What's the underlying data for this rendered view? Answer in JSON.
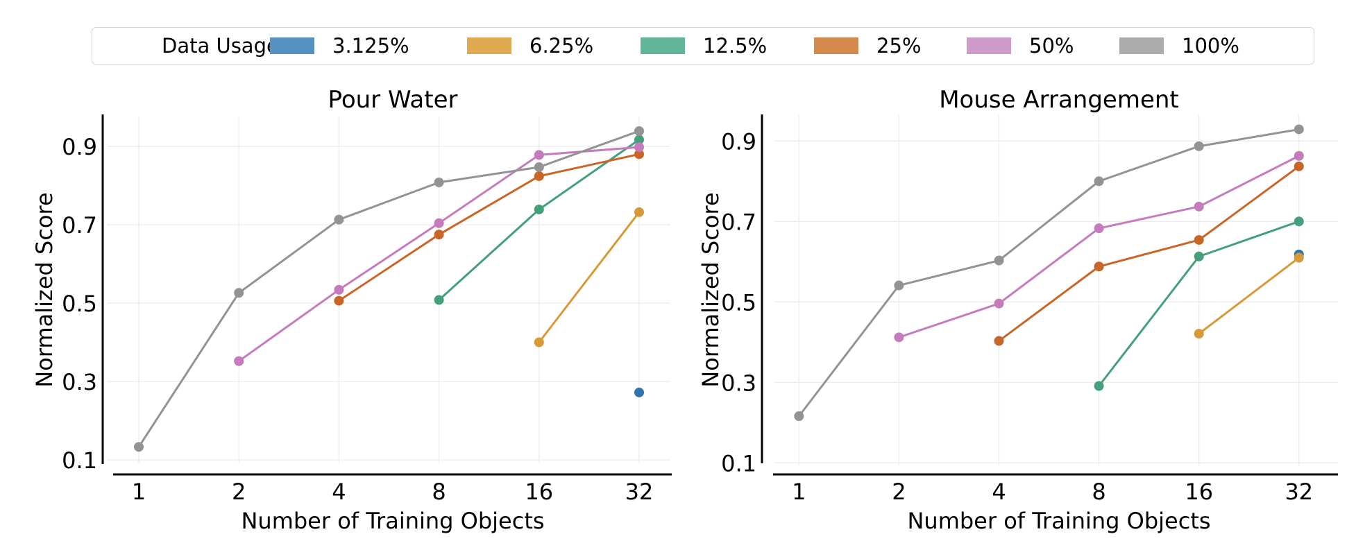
{
  "legend": {
    "title": "Data Usage:",
    "items": [
      {
        "label": "3.125%",
        "color": "#5592c2"
      },
      {
        "label": "6.25%",
        "color": "#e0aa53"
      },
      {
        "label": "12.5%",
        "color": "#61b697"
      },
      {
        "label": "25%",
        "color": "#d4894d"
      },
      {
        "label": "50%",
        "color": "#cf9bca"
      },
      {
        "label": "100%",
        "color": "#ababab"
      }
    ]
  },
  "chart_data": [
    {
      "type": "line",
      "title": "Pour Water",
      "xlabel": "Number of Training Objects",
      "ylabel": "Normalized Score",
      "x": [
        1,
        2,
        4,
        8,
        16,
        32
      ],
      "x_scale": "log2",
      "x_tick_labels": [
        "1",
        "2",
        "4",
        "8",
        "16",
        "32"
      ],
      "y_ticks": [
        0.1,
        0.3,
        0.5,
        0.7,
        0.9
      ],
      "y_tick_labels": [
        "0.1",
        "0.3",
        "0.5",
        "0.7",
        "0.9"
      ],
      "ylim": [
        0.09,
        0.98
      ],
      "grid": true,
      "legend": "top (shared)",
      "series": [
        {
          "name": "3.125%",
          "color": "#3274ad",
          "values": [
            null,
            null,
            null,
            null,
            null,
            0.272
          ]
        },
        {
          "name": "6.25%",
          "color": "#d89a38",
          "values": [
            null,
            null,
            null,
            null,
            0.4,
            0.732
          ]
        },
        {
          "name": "12.5%",
          "color": "#44a07b",
          "values": [
            null,
            null,
            null,
            0.508,
            0.739,
            0.917
          ]
        },
        {
          "name": "25%",
          "color": "#c96627",
          "values": [
            null,
            null,
            0.506,
            0.675,
            0.824,
            0.88
          ]
        },
        {
          "name": "50%",
          "color": "#c47cbc",
          "values": [
            null,
            0.352,
            0.534,
            0.704,
            0.878,
            0.898
          ]
        },
        {
          "name": "100%",
          "color": "#939393",
          "values": [
            0.133,
            0.526,
            0.713,
            0.808,
            0.847,
            0.939
          ]
        }
      ]
    },
    {
      "type": "line",
      "title": "Mouse Arrangement",
      "xlabel": "Number of Training Objects",
      "ylabel": "Normalized Score",
      "x": [
        1,
        2,
        4,
        8,
        16,
        32
      ],
      "x_scale": "log2",
      "x_tick_labels": [
        "1",
        "2",
        "4",
        "8",
        "16",
        "32"
      ],
      "y_ticks": [
        0.1,
        0.3,
        0.5,
        0.7,
        0.9
      ],
      "y_tick_labels": [
        "0.1",
        "0.3",
        "0.5",
        "0.7",
        "0.9"
      ],
      "ylim": [
        0.1,
        0.97
      ],
      "grid": true,
      "legend": "top (shared)",
      "series": [
        {
          "name": "3.125%",
          "color": "#3274ad",
          "values": [
            null,
            null,
            null,
            null,
            null,
            0.618
          ]
        },
        {
          "name": "6.25%",
          "color": "#d89a38",
          "values": [
            null,
            null,
            null,
            null,
            0.421,
            0.61
          ]
        },
        {
          "name": "12.5%",
          "color": "#44a07b",
          "values": [
            null,
            null,
            null,
            0.291,
            0.613,
            0.7
          ]
        },
        {
          "name": "25%",
          "color": "#c96627",
          "values": [
            null,
            null,
            0.403,
            0.588,
            0.654,
            0.837
          ]
        },
        {
          "name": "50%",
          "color": "#c47cbc",
          "values": [
            null,
            0.412,
            0.496,
            0.683,
            0.737,
            0.863
          ]
        },
        {
          "name": "100%",
          "color": "#939393",
          "values": [
            0.216,
            0.541,
            0.603,
            0.8,
            0.887,
            0.929
          ]
        }
      ]
    }
  ]
}
